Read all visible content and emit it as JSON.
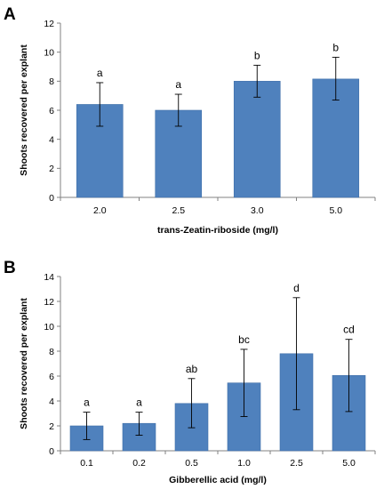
{
  "colors": {
    "bar": "#4f81bd",
    "bar_edge": "#3f6fa8",
    "axis": "#808080",
    "error_bar": "#000000"
  },
  "chart_data": [
    {
      "type": "bar",
      "panel_label": "A",
      "categories": [
        "2.0",
        "2.5",
        "3.0",
        "5.0"
      ],
      "values": [
        6.4,
        6.0,
        8.0,
        8.15
      ],
      "error_high": [
        7.9,
        7.1,
        9.1,
        9.65
      ],
      "error_low": [
        4.9,
        4.9,
        6.9,
        6.7
      ],
      "significance": [
        "a",
        "a",
        "b",
        "b"
      ],
      "xlabel": "trans-Zeatin-riboside (mg/l)",
      "ylabel": "Shoots recovered per explant",
      "ylim": [
        0,
        12
      ],
      "yticks": [
        0,
        2,
        4,
        6,
        8,
        10,
        12
      ],
      "grid": false
    },
    {
      "type": "bar",
      "panel_label": "B",
      "categories": [
        "0.1",
        "0.2",
        "0.5",
        "1.0",
        "2.5",
        "5.0"
      ],
      "values": [
        2.0,
        2.2,
        3.8,
        5.45,
        7.8,
        6.05
      ],
      "error_high": [
        3.1,
        3.1,
        5.8,
        8.15,
        12.3,
        8.95
      ],
      "error_low": [
        0.9,
        1.25,
        1.85,
        2.75,
        3.3,
        3.15
      ],
      "significance": [
        "a",
        "a",
        "ab",
        "bc",
        "d",
        "cd"
      ],
      "xlabel": "Gibberellic acid (mg/l)",
      "ylabel": "Shoots recovered per explant",
      "ylim": [
        0,
        14
      ],
      "yticks": [
        0,
        2,
        4,
        6,
        8,
        10,
        12,
        14
      ],
      "grid": false
    }
  ]
}
